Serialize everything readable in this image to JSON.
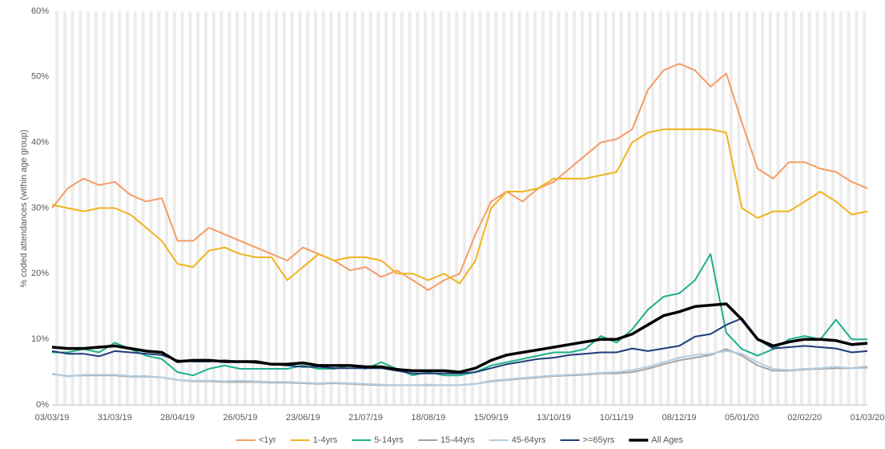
{
  "chart_data": {
    "type": "line",
    "ylabel": "% coded attendances (within age group)",
    "x": [
      "03/03/19",
      "10/03/19",
      "17/03/19",
      "24/03/19",
      "31/03/19",
      "07/04/19",
      "14/04/19",
      "21/04/19",
      "28/04/19",
      "05/05/19",
      "12/05/19",
      "19/05/19",
      "26/05/19",
      "02/06/19",
      "09/06/19",
      "16/06/19",
      "23/06/19",
      "30/06/19",
      "07/07/19",
      "14/07/19",
      "21/07/19",
      "28/07/19",
      "04/08/19",
      "11/08/19",
      "18/08/19",
      "25/08/19",
      "01/09/19",
      "08/09/19",
      "15/09/19",
      "22/09/19",
      "29/09/19",
      "06/10/19",
      "13/10/19",
      "20/10/19",
      "27/10/19",
      "03/11/19",
      "10/11/19",
      "17/11/19",
      "24/11/19",
      "01/12/19",
      "08/12/19",
      "15/12/19",
      "22/12/19",
      "29/12/19",
      "05/01/20",
      "12/01/20",
      "19/01/20",
      "26/01/20",
      "02/02/20",
      "09/02/20",
      "16/02/20",
      "23/02/20",
      "01/03/20"
    ],
    "xticks": [
      "03/03/19",
      "31/03/19",
      "28/04/19",
      "26/05/19",
      "23/06/19",
      "21/07/19",
      "18/08/19",
      "15/09/19",
      "13/10/19",
      "10/11/19",
      "08/12/19",
      "05/01/20",
      "02/02/20",
      "01/03/20"
    ],
    "ylim": [
      0,
      60
    ],
    "yticks": [
      {
        "value": 0,
        "label": "0%"
      },
      {
        "value": 10,
        "label": "10%"
      },
      {
        "value": 20,
        "label": "20%"
      },
      {
        "value": 30,
        "label": "30%"
      },
      {
        "value": 40,
        "label": "40%"
      },
      {
        "value": 50,
        "label": "50%"
      },
      {
        "value": 60,
        "label": "60%"
      }
    ],
    "legend": "bottom",
    "series": [
      {
        "name": "<1yr",
        "color": "#f59c64",
        "width": 2,
        "values": [
          30,
          33,
          34.5,
          33.5,
          34,
          32,
          31,
          31.5,
          25,
          25,
          27,
          26,
          25,
          24,
          23,
          22,
          24,
          23,
          22,
          20.5,
          21,
          19.5,
          20.5,
          19,
          17.5,
          19,
          20,
          26,
          31,
          32.5,
          31,
          33,
          34,
          36,
          38,
          40,
          40.5,
          42,
          48,
          51,
          52,
          51,
          48.5,
          50.5,
          43,
          36,
          34.5,
          37,
          37,
          36,
          35.5,
          34,
          33
        ]
      },
      {
        "name": "1-4yrs",
        "color": "#f0b41c",
        "width": 2,
        "values": [
          30.5,
          30,
          29.5,
          30,
          30,
          29,
          27,
          25,
          21.5,
          21,
          23.5,
          24,
          23,
          22.5,
          22.5,
          19,
          21,
          23,
          22,
          22.5,
          22.5,
          22,
          20,
          20,
          19,
          20,
          18.5,
          22,
          30,
          32.5,
          32.5,
          33,
          34.5,
          34.5,
          34.5,
          35,
          35.5,
          40,
          41.5,
          42,
          42,
          42,
          42,
          41.5,
          30,
          28.5,
          29.5,
          29.5,
          31,
          32.5,
          31,
          29,
          29.5
        ]
      },
      {
        "name": "5-14yrs",
        "color": "#20b08e",
        "width": 2,
        "values": [
          8,
          8,
          8.5,
          8,
          9.5,
          8.5,
          7.5,
          7,
          5,
          4.5,
          5.5,
          6,
          5.5,
          5.5,
          5.5,
          5.5,
          6,
          5.5,
          5.5,
          6,
          5.5,
          6.5,
          5.5,
          4.5,
          5,
          4.5,
          4.5,
          5,
          6,
          6.5,
          7,
          7.5,
          8,
          8,
          8.5,
          10.5,
          9.5,
          11.5,
          14.5,
          16.5,
          17,
          19,
          23,
          11,
          8.5,
          7.5,
          8.5,
          10,
          10.5,
          10,
          13,
          10,
          10
        ]
      },
      {
        "name": "15-44yrs",
        "color": "#a5a5a5",
        "width": 2,
        "values": [
          4.7,
          4.4,
          4.5,
          4.5,
          4.5,
          4.3,
          4.3,
          4.2,
          3.8,
          3.6,
          3.6,
          3.5,
          3.5,
          3.5,
          3.4,
          3.4,
          3.3,
          3.2,
          3.3,
          3.2,
          3.1,
          3.0,
          3.0,
          3.0,
          3.0,
          3.0,
          3.0,
          3.2,
          3.6,
          3.8,
          4.0,
          4.2,
          4.4,
          4.5,
          4.6,
          4.8,
          4.8,
          5.0,
          5.5,
          6.2,
          6.8,
          7.2,
          7.6,
          8.5,
          7.5,
          6.0,
          5.2,
          5.2,
          5.4,
          5.5,
          5.6,
          5.6,
          5.8
        ]
      },
      {
        "name": "45-64yrs",
        "color": "#b4cde0",
        "width": 2,
        "values": [
          4.8,
          4.3,
          4.6,
          4.6,
          4.6,
          4.4,
          4.4,
          4.2,
          3.8,
          3.7,
          3.7,
          3.6,
          3.7,
          3.6,
          3.5,
          3.5,
          3.4,
          3.3,
          3.4,
          3.3,
          3.2,
          3.1,
          3.0,
          3.0,
          3.1,
          3.0,
          3.0,
          3.2,
          3.7,
          3.9,
          4.1,
          4.3,
          4.5,
          4.6,
          4.7,
          4.9,
          5.0,
          5.3,
          5.8,
          6.5,
          7.2,
          7.6,
          7.8,
          8.2,
          7.8,
          6.5,
          5.5,
          5.3,
          5.5,
          5.6,
          5.8,
          5.6,
          5.6
        ]
      },
      {
        "name": ">=65yrs",
        "color": "#1f3c78",
        "width": 2,
        "values": [
          8.2,
          7.8,
          7.8,
          7.4,
          8.2,
          8.0,
          7.8,
          7.6,
          6.8,
          6.6,
          6.6,
          6.8,
          6.6,
          6.4,
          6.2,
          6.0,
          5.8,
          5.8,
          5.6,
          5.6,
          5.6,
          5.6,
          5.2,
          4.8,
          4.8,
          4.8,
          4.8,
          5.0,
          5.6,
          6.2,
          6.6,
          7.0,
          7.2,
          7.6,
          7.8,
          8.0,
          8.0,
          8.6,
          8.2,
          8.6,
          9.0,
          10.4,
          10.8,
          12.2,
          13.2,
          10.0,
          8.6,
          8.8,
          9.0,
          8.8,
          8.6,
          8.0,
          8.2
        ]
      },
      {
        "name": "All Ages",
        "color": "#000000",
        "width": 3.5,
        "values": [
          8.8,
          8.6,
          8.6,
          8.8,
          9.0,
          8.6,
          8.2,
          8.0,
          6.6,
          6.8,
          6.8,
          6.6,
          6.6,
          6.6,
          6.2,
          6.2,
          6.4,
          6.0,
          6.0,
          6.0,
          5.8,
          5.8,
          5.4,
          5.2,
          5.2,
          5.2,
          5.0,
          5.6,
          6.8,
          7.6,
          8.0,
          8.4,
          8.8,
          9.2,
          9.6,
          10.0,
          10.0,
          10.8,
          12.2,
          13.6,
          14.2,
          15.0,
          15.2,
          15.4,
          13.0,
          10.0,
          9.0,
          9.6,
          10.0,
          10.0,
          9.8,
          9.2,
          9.4
        ]
      }
    ]
  }
}
